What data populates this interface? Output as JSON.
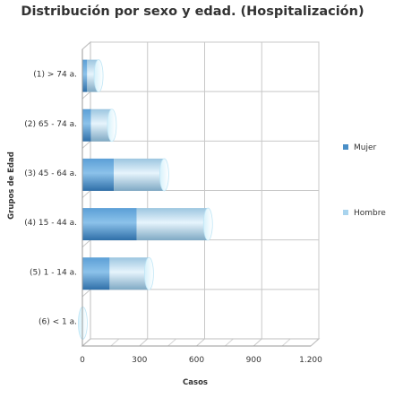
{
  "chart_data": {
    "type": "bar",
    "orientation": "horizontal",
    "stacked": true,
    "title": "Distribución por sexo y edad. (Hospitalización)",
    "xlabel": "Casos",
    "ylabel": "Grupos de Edad",
    "categories": [
      "(1) > 74 a.",
      "(2) 65 - 74 a.",
      "(3) 45 - 64 a.",
      "(4) 15 - 44 a.",
      "(5) 1 - 14 a.",
      "(6) < 1 a."
    ],
    "series": [
      {
        "name": "Mujer",
        "values": [
          25,
          45,
          165,
          285,
          143,
          2
        ]
      },
      {
        "name": "Hombre",
        "values": [
          60,
          110,
          265,
          375,
          207,
          0
        ]
      }
    ],
    "xlim": [
      0,
      1200
    ],
    "xticks": [
      0,
      300,
      600,
      900,
      1200
    ],
    "xtick_labels": [
      "0",
      "300",
      "600",
      "900",
      "1.200"
    ],
    "grid": true,
    "legend": "right",
    "colors": {
      "Mujer": "#4a8fc7",
      "Hombre": "#a9d4ee"
    }
  }
}
